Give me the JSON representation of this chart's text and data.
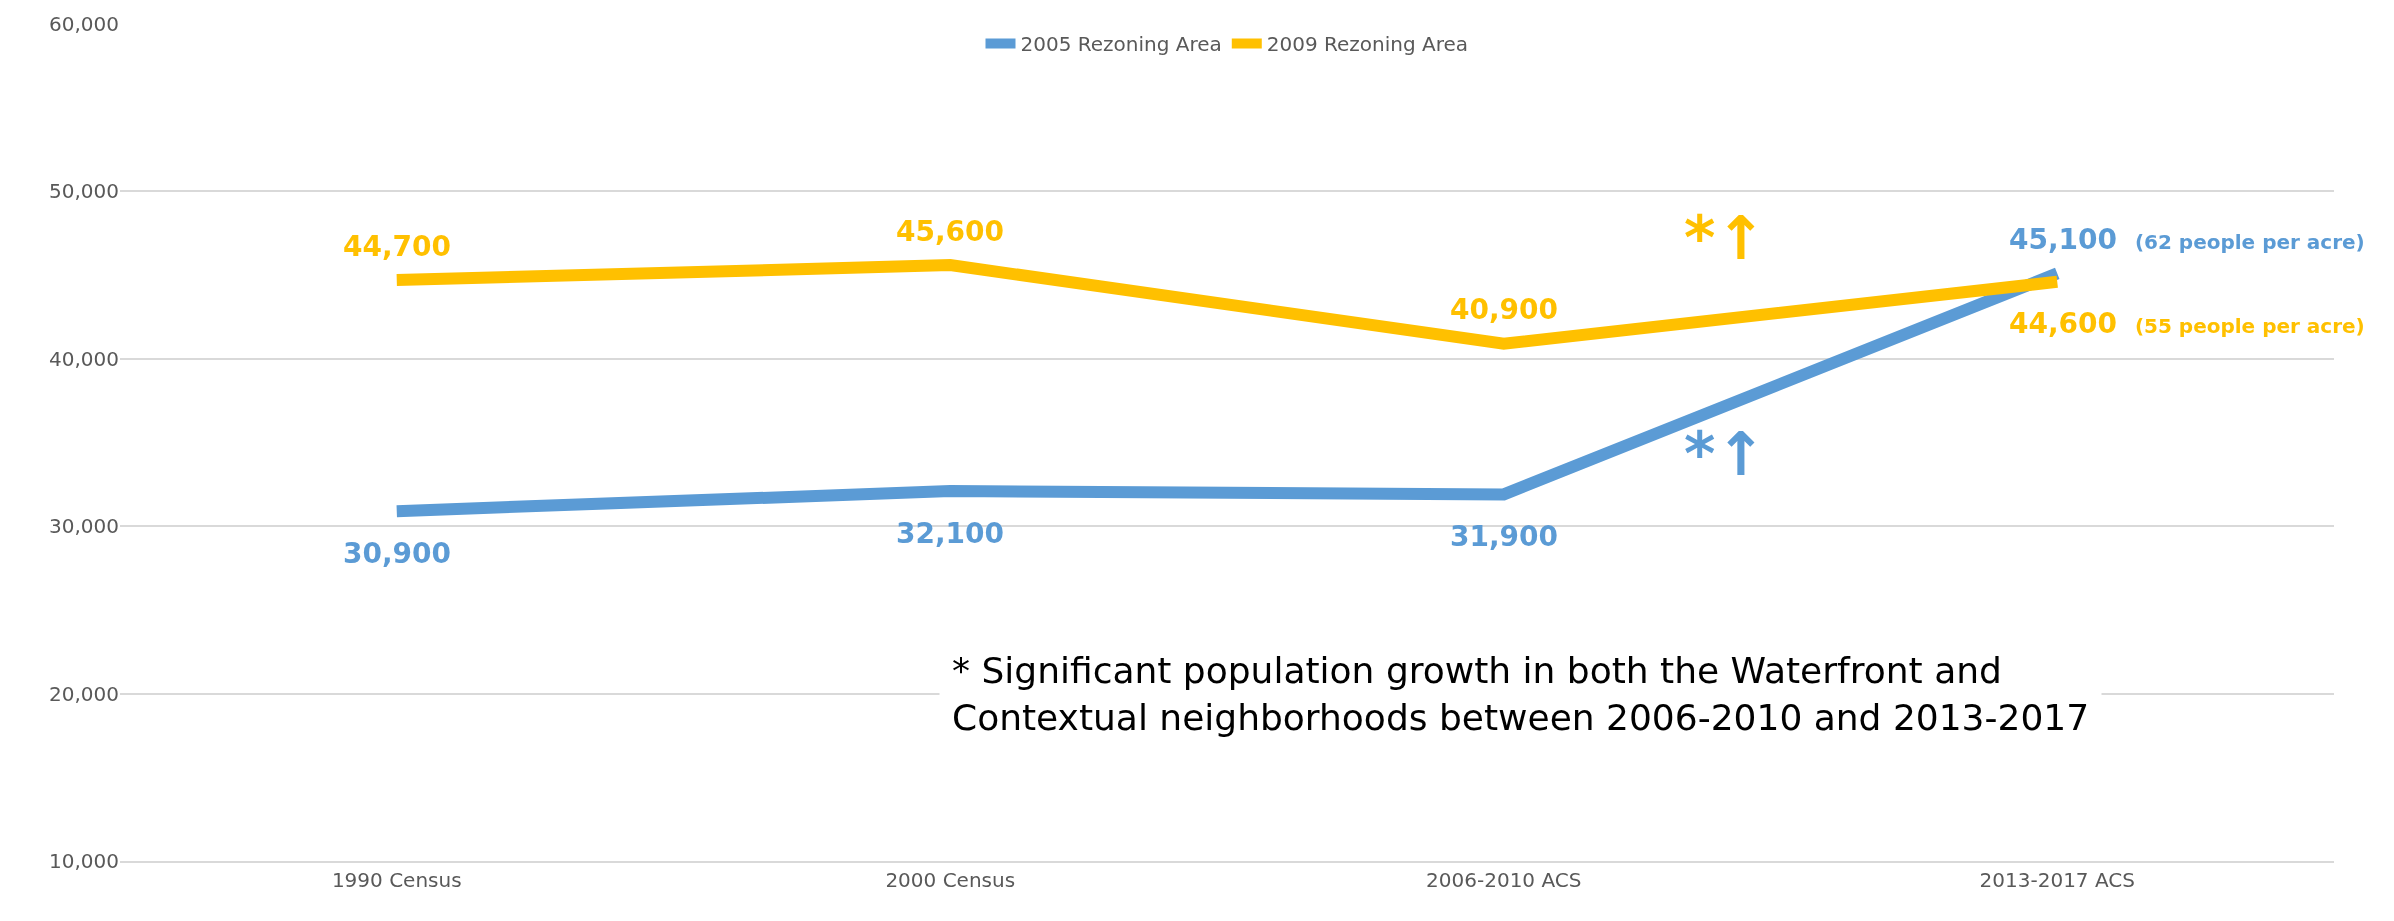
{
  "chart_data": {
    "type": "line",
    "categories": [
      "1990 Census",
      "2000 Census",
      "2006-2010 ACS",
      "2013-2017 ACS"
    ],
    "series": [
      {
        "name": "2005 Rezoning Area",
        "color": "#5b9bd5",
        "values": [
          30900,
          32100,
          31900,
          45100
        ],
        "value_labels": [
          "30,900",
          "32,100",
          "31,900",
          "45,100 (62 people per acre)"
        ]
      },
      {
        "name": "2009 Rezoning Area",
        "color": "#ffc000",
        "values": [
          44700,
          45600,
          40900,
          44600
        ],
        "value_labels": [
          "44,700",
          "45,600",
          "40,900",
          "44,600 (55 people per acre)"
        ]
      }
    ],
    "ylim": [
      10000,
      60000
    ],
    "yticks": [
      {
        "value": 10000,
        "label": "10,000"
      },
      {
        "value": 20000,
        "label": "20,000"
      },
      {
        "value": 30000,
        "label": "30,000"
      },
      {
        "value": 40000,
        "label": "40,000"
      },
      {
        "value": 50000,
        "label": "50,000"
      },
      {
        "value": 60000,
        "label": "60,000"
      }
    ],
    "grid": "y",
    "legend": "top",
    "marker": "none",
    "line_style": "solid",
    "annotations": [
      "*↑",
      "*↑",
      "* Significant population growth in both the Waterfront and\nContextual neighborhoods between 2006-2010 and 2013-2017"
    ]
  }
}
